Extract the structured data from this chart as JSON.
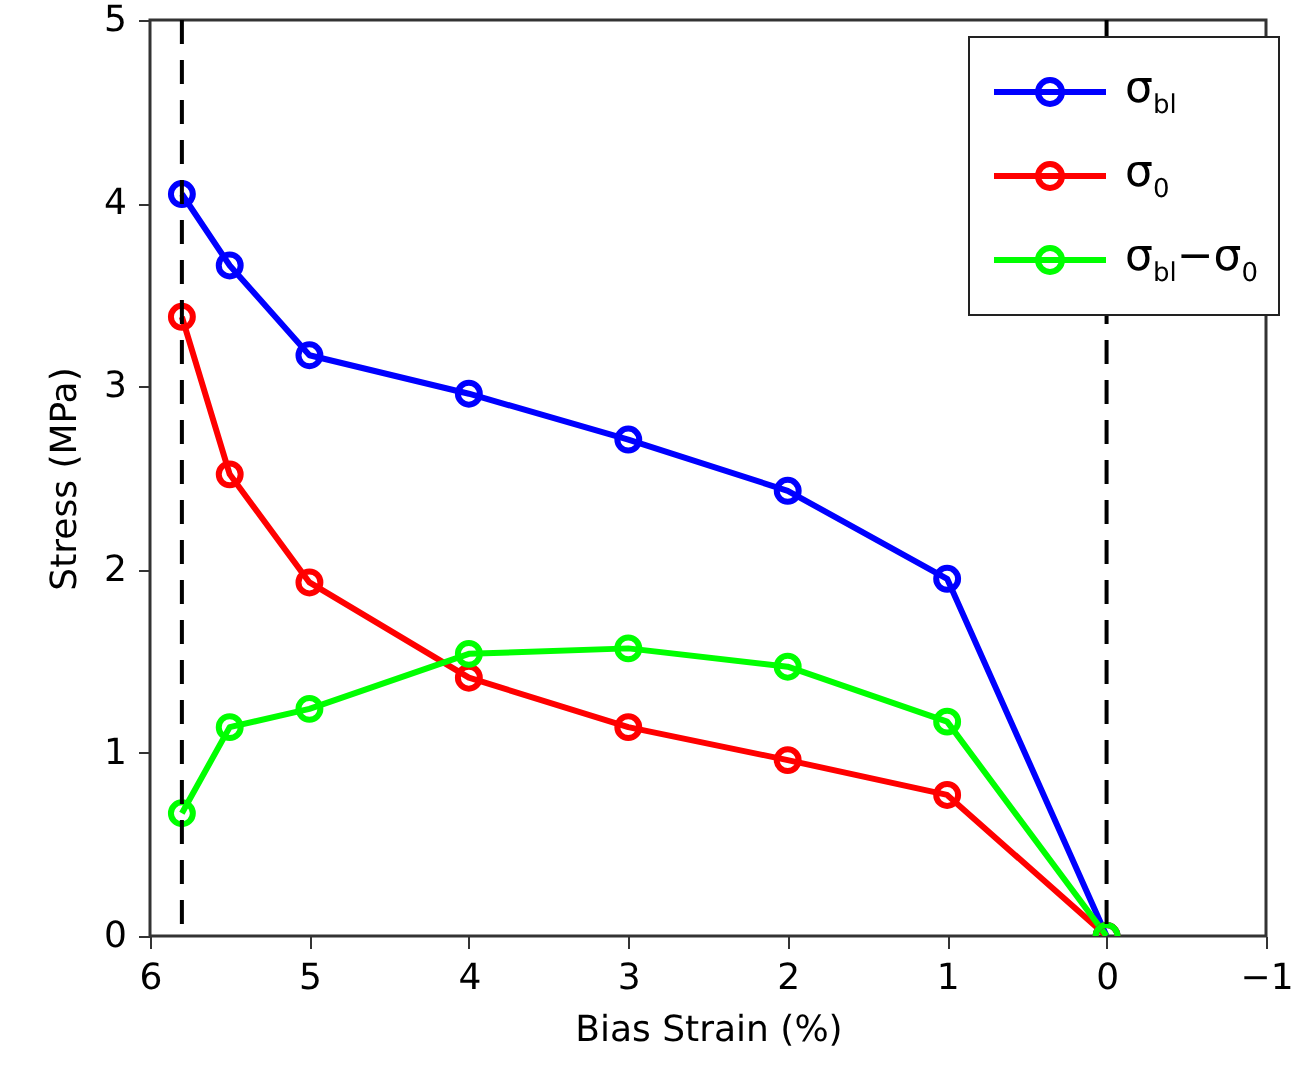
{
  "chart_data": {
    "type": "line",
    "xlabel": "Bias Strain (%)",
    "ylabel": "Stress (MPa)",
    "x": [
      5.8,
      5.5,
      5,
      4,
      3,
      2,
      1,
      0
    ],
    "series": [
      {
        "name": "σ$_{bl}$",
        "color": "#0000ff",
        "values": [
          4.05,
          3.66,
          3.17,
          2.96,
          2.71,
          2.43,
          1.95,
          0
        ]
      },
      {
        "name": "σ$_{0}$",
        "color": "#ff0000",
        "values": [
          3.38,
          2.52,
          1.93,
          1.41,
          1.14,
          0.96,
          0.77,
          0
        ]
      },
      {
        "name": "σ$_{bl}$−σ$_{0}$",
        "color": "#00ff00",
        "values": [
          0.67,
          1.14,
          1.24,
          1.54,
          1.57,
          1.47,
          1.17,
          0
        ]
      }
    ],
    "xlim": [
      6,
      -1
    ],
    "xticks": [
      6,
      5,
      4,
      3,
      2,
      1,
      0,
      {
        "value": -1,
        "label": "−1"
      }
    ],
    "ylim": [
      0,
      5
    ],
    "yticks": [
      0,
      1,
      2,
      3,
      4,
      5
    ],
    "ref_lines": [
      {
        "axis": "x",
        "value": 5.8,
        "color": "#000000",
        "line_style": "dashed"
      },
      {
        "axis": "x",
        "value": 0,
        "color": "#000000",
        "line_style": "dashed"
      }
    ],
    "grid": false,
    "legend": "top right",
    "marker": "circle",
    "line_style": "solid"
  }
}
